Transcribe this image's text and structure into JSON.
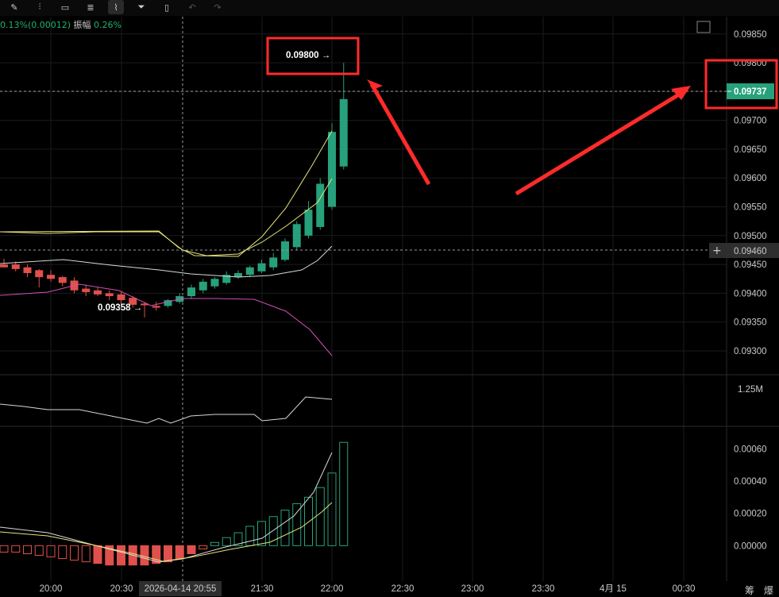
{
  "toolbar": {
    "items": [
      {
        "icon": "draw-tool-icon",
        "glyph": "✎"
      },
      {
        "icon": "indicators-icon",
        "glyph": "⫶"
      },
      {
        "icon": "camera-icon",
        "glyph": "▭"
      },
      {
        "icon": "notes-icon",
        "glyph": "≣"
      },
      {
        "icon": "measure-icon",
        "glyph": "⌇"
      },
      {
        "icon": "filter-icon",
        "glyph": "⏷"
      },
      {
        "icon": "trash-icon",
        "glyph": "▯"
      },
      {
        "icon": "undo-icon",
        "glyph": "↶"
      },
      {
        "icon": "redo-icon",
        "glyph": "↷"
      }
    ]
  },
  "info": {
    "change": "0.13%(0.00012)",
    "amplitude_label": "振幅",
    "amplitude_value": "0.26%"
  },
  "price_axis": {
    "labels": [
      "0.09850",
      "0.09800",
      "0.09750",
      "0.09700",
      "0.09650",
      "0.09600",
      "0.09550",
      "0.09500",
      "0.09450",
      "0.09400",
      "0.09350",
      "0.09300"
    ]
  },
  "volume_axis": {
    "labels": [
      "1.25M"
    ]
  },
  "macd_axis": {
    "labels": [
      "0.00060",
      "0.00040",
      "0.00020",
      "0.00000"
    ]
  },
  "time_axis": {
    "labels": [
      "20:00",
      "20:30",
      "21:30",
      "22:00",
      "22:30",
      "23:00",
      "23:30",
      "4月 15",
      "00:30"
    ],
    "crosshair_label": "2026-04-14 20:55"
  },
  "markers": {
    "high": "0.09800",
    "low": "0.09358",
    "current_price": "0.09737",
    "crosshair_price": "0.09460"
  },
  "footer": {
    "text": "筹 爆"
  },
  "colors": {
    "up": "#26a17b",
    "down": "#e0504c",
    "ma_yellow": "#e5e37a",
    "ma_white": "#d8d8d8",
    "boll_pink": "#d24fb5",
    "highlight": "#ff2b2b",
    "background": "#000000",
    "grid": "#1b1b1b"
  },
  "chart_data": {
    "type": "candlestick",
    "ylim": [
      0.0926,
      0.0988
    ],
    "candles": [
      {
        "o": 0.0945,
        "h": 0.0946,
        "l": 0.09445,
        "c": 0.09445
      },
      {
        "o": 0.0945,
        "h": 0.09455,
        "l": 0.09438,
        "c": 0.09442
      },
      {
        "o": 0.09445,
        "h": 0.0945,
        "l": 0.09428,
        "c": 0.09435
      },
      {
        "o": 0.0944,
        "h": 0.09442,
        "l": 0.0941,
        "c": 0.09428
      },
      {
        "o": 0.09432,
        "h": 0.0944,
        "l": 0.0942,
        "c": 0.09425
      },
      {
        "o": 0.09428,
        "h": 0.0943,
        "l": 0.09412,
        "c": 0.09418
      },
      {
        "o": 0.09422,
        "h": 0.09428,
        "l": 0.094,
        "c": 0.09405
      },
      {
        "o": 0.09408,
        "h": 0.09415,
        "l": 0.09395,
        "c": 0.09402
      },
      {
        "o": 0.09405,
        "h": 0.0941,
        "l": 0.09395,
        "c": 0.09398
      },
      {
        "o": 0.094,
        "h": 0.09405,
        "l": 0.09388,
        "c": 0.09395
      },
      {
        "o": 0.09398,
        "h": 0.09402,
        "l": 0.0938,
        "c": 0.09388
      },
      {
        "o": 0.09392,
        "h": 0.09395,
        "l": 0.09375,
        "c": 0.0938
      },
      {
        "o": 0.09382,
        "h": 0.09385,
        "l": 0.09358,
        "c": 0.0938
      },
      {
        "o": 0.09378,
        "h": 0.09385,
        "l": 0.0937,
        "c": 0.09375
      },
      {
        "o": 0.09378,
        "h": 0.0939,
        "l": 0.09375,
        "c": 0.09388
      },
      {
        "o": 0.09385,
        "h": 0.094,
        "l": 0.09382,
        "c": 0.09395
      },
      {
        "o": 0.09395,
        "h": 0.09415,
        "l": 0.0939,
        "c": 0.0941
      },
      {
        "o": 0.09405,
        "h": 0.09425,
        "l": 0.094,
        "c": 0.0942
      },
      {
        "o": 0.09412,
        "h": 0.09428,
        "l": 0.09408,
        "c": 0.09425
      },
      {
        "o": 0.09418,
        "h": 0.09438,
        "l": 0.09415,
        "c": 0.09432
      },
      {
        "o": 0.09428,
        "h": 0.0944,
        "l": 0.09425,
        "c": 0.09435
      },
      {
        "o": 0.09432,
        "h": 0.09448,
        "l": 0.09428,
        "c": 0.09445
      },
      {
        "o": 0.09438,
        "h": 0.09458,
        "l": 0.09435,
        "c": 0.09452
      },
      {
        "o": 0.09445,
        "h": 0.0947,
        "l": 0.0944,
        "c": 0.09462
      },
      {
        "o": 0.09458,
        "h": 0.09495,
        "l": 0.09455,
        "c": 0.0949
      },
      {
        "o": 0.0948,
        "h": 0.09525,
        "l": 0.09475,
        "c": 0.0952
      },
      {
        "o": 0.095,
        "h": 0.0956,
        "l": 0.09495,
        "c": 0.09545
      },
      {
        "o": 0.09515,
        "h": 0.096,
        "l": 0.0951,
        "c": 0.0959
      },
      {
        "o": 0.0955,
        "h": 0.09695,
        "l": 0.09545,
        "c": 0.0968
      },
      {
        "o": 0.0962,
        "h": 0.098,
        "l": 0.09615,
        "c": 0.09737
      }
    ],
    "volume_axis_label": "1.25M",
    "macd_ylim": [
      -0.0002,
      0.0007
    ],
    "macd_hist": [
      -4e-05,
      -4e-05,
      -5e-05,
      -6e-05,
      -7e-05,
      -8e-05,
      -9e-05,
      -0.0001,
      -0.00011,
      -0.00012,
      -0.00012,
      -0.00012,
      -0.00012,
      -0.00011,
      -0.0001,
      -8e-05,
      -5e-05,
      -2e-05,
      2e-05,
      5e-05,
      8e-05,
      0.00012,
      0.00015,
      0.00018,
      0.00022,
      0.00026,
      0.0003,
      0.00036,
      0.00045,
      0.00064
    ]
  }
}
